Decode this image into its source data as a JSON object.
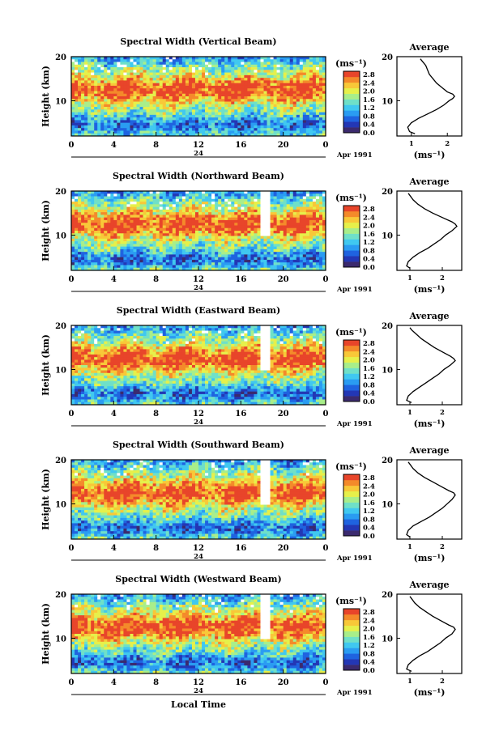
{
  "chart_data": [
    {
      "type": "heatmap",
      "title": "Spectral Width (Vertical Beam)",
      "ylabel": "Height (km)",
      "x_ticks": [
        "0",
        "4",
        "8",
        "12",
        "16",
        "20",
        "0"
      ],
      "y_ticks": [
        "20",
        "10"
      ],
      "date_label": "24",
      "month_label": "Apr 1991",
      "colorbar": {
        "unit": "(ms⁻¹)",
        "ticks": [
          "2.8",
          "2.4",
          "2.0",
          "1.6",
          "1.2",
          "0.8",
          "0.4",
          "0.0"
        ]
      },
      "average_profile": {
        "title": "Average",
        "xlabel": "(ms⁻¹)",
        "x_ticks": [
          "1",
          "2"
        ],
        "y_ticks": [
          "20",
          "10"
        ],
        "xlim": [
          0.6,
          2.4
        ],
        "ylim": [
          2,
          20
        ],
        "height_km": [
          2.5,
          3,
          4,
          5,
          6,
          7,
          8,
          9,
          10,
          10.5,
          11,
          11.5,
          12,
          13,
          14,
          15,
          16,
          17,
          18,
          19,
          19.5
        ],
        "width_ms": [
          1.1,
          0.95,
          0.9,
          1.0,
          1.2,
          1.45,
          1.7,
          1.9,
          2.05,
          2.15,
          2.2,
          2.15,
          2.0,
          1.85,
          1.7,
          1.6,
          1.5,
          1.45,
          1.4,
          1.3,
          1.25
        ]
      }
    },
    {
      "type": "heatmap",
      "title": "Spectral Width (Northward Beam)",
      "ylabel": "Height (km)",
      "x_ticks": [
        "0",
        "4",
        "8",
        "12",
        "16",
        "20",
        "0"
      ],
      "y_ticks": [
        "20",
        "10"
      ],
      "date_label": "24",
      "month_label": "Apr 1991",
      "colorbar": {
        "unit": "(ms⁻¹)",
        "ticks": [
          "2.8",
          "2.4",
          "2.0",
          "1.6",
          "1.2",
          "0.8",
          "0.4",
          "0.0"
        ]
      },
      "average_profile": {
        "title": "Average",
        "xlabel": "(ms⁻¹)",
        "x_ticks": [
          "1",
          "2"
        ],
        "y_ticks": [
          "20",
          "10"
        ],
        "xlim": [
          0.6,
          2.6
        ],
        "ylim": [
          2,
          20
        ],
        "height_km": [
          2.5,
          3,
          4,
          5,
          6,
          7,
          8,
          9,
          10,
          11,
          12,
          12.5,
          13,
          14,
          15,
          16,
          17,
          18,
          19,
          19.5
        ],
        "width_ms": [
          1.0,
          0.9,
          0.95,
          1.1,
          1.3,
          1.55,
          1.75,
          1.95,
          2.1,
          2.3,
          2.45,
          2.4,
          2.3,
          2.0,
          1.7,
          1.45,
          1.25,
          1.1,
          1.0,
          0.95
        ]
      }
    },
    {
      "type": "heatmap",
      "title": "Spectral Width (Eastward Beam)",
      "ylabel": "Height (km)",
      "x_ticks": [
        "0",
        "4",
        "8",
        "12",
        "16",
        "20",
        "0"
      ],
      "y_ticks": [
        "20",
        "10"
      ],
      "date_label": "24",
      "month_label": "Apr 1991",
      "colorbar": {
        "unit": "(ms⁻¹)",
        "ticks": [
          "2.8",
          "2.4",
          "2.0",
          "1.6",
          "1.2",
          "0.8",
          "0.4",
          "0.0"
        ]
      },
      "average_profile": {
        "title": "Average",
        "xlabel": "(ms⁻¹)",
        "x_ticks": [
          "1",
          "2"
        ],
        "y_ticks": [
          "20",
          "10"
        ],
        "xlim": [
          0.6,
          2.6
        ],
        "ylim": [
          2,
          20
        ],
        "height_km": [
          2.5,
          3,
          4,
          5,
          6,
          7,
          8,
          9,
          10,
          11,
          12,
          12.5,
          13,
          14,
          15,
          16,
          17,
          18,
          19,
          19.5
        ],
        "width_ms": [
          1.05,
          0.9,
          0.95,
          1.1,
          1.3,
          1.5,
          1.7,
          1.9,
          2.05,
          2.25,
          2.4,
          2.35,
          2.25,
          2.0,
          1.75,
          1.55,
          1.35,
          1.2,
          1.05,
          1.0
        ]
      }
    },
    {
      "type": "heatmap",
      "title": "Spectral Width (Southward Beam)",
      "ylabel": "Height (km)",
      "x_ticks": [
        "0",
        "4",
        "8",
        "12",
        "16",
        "20",
        "0"
      ],
      "y_ticks": [
        "20",
        "10"
      ],
      "date_label": "24",
      "month_label": "Apr 1991",
      "colorbar": {
        "unit": "(ms⁻¹)",
        "ticks": [
          "2.8",
          "2.4",
          "2.0",
          "1.6",
          "1.2",
          "0.8",
          "0.4",
          "0.0"
        ]
      },
      "average_profile": {
        "title": "Average",
        "xlabel": "(ms⁻¹)",
        "x_ticks": [
          "1",
          "2"
        ],
        "y_ticks": [
          "20",
          "10"
        ],
        "xlim": [
          0.6,
          2.6
        ],
        "ylim": [
          2,
          20
        ],
        "height_km": [
          2.5,
          3,
          4,
          5,
          6,
          7,
          8,
          9,
          10,
          11,
          12,
          12.5,
          13,
          14,
          15,
          16,
          17,
          18,
          19,
          19.5
        ],
        "width_ms": [
          1.0,
          0.9,
          0.95,
          1.1,
          1.35,
          1.6,
          1.8,
          2.0,
          2.15,
          2.3,
          2.4,
          2.35,
          2.2,
          1.95,
          1.7,
          1.45,
          1.25,
          1.1,
          1.0,
          0.95
        ]
      }
    },
    {
      "type": "heatmap",
      "title": "Spectral Width (Westward Beam)",
      "ylabel": "Height (km)",
      "x_ticks": [
        "0",
        "4",
        "8",
        "12",
        "16",
        "20",
        "0"
      ],
      "y_ticks": [
        "20",
        "10"
      ],
      "date_label": "24",
      "month_label": "Apr 1991",
      "xlabel": "Local Time",
      "colorbar": {
        "unit": "(ms⁻¹)",
        "ticks": [
          "2.8",
          "2.4",
          "2.0",
          "1.6",
          "1.2",
          "0.8",
          "0.4",
          "0.0"
        ]
      },
      "average_profile": {
        "title": "Average",
        "xlabel": "(ms⁻¹)",
        "x_ticks": [
          "1",
          "2"
        ],
        "y_ticks": [
          "20",
          "10"
        ],
        "xlim": [
          0.6,
          2.6
        ],
        "ylim": [
          2,
          20
        ],
        "height_km": [
          2.5,
          3,
          4,
          5,
          6,
          7,
          8,
          9,
          10,
          11,
          12,
          12.5,
          13,
          14,
          15,
          16,
          17,
          18,
          19,
          19.5
        ],
        "width_ms": [
          1.05,
          0.9,
          0.95,
          1.1,
          1.3,
          1.55,
          1.75,
          1.95,
          2.1,
          2.3,
          2.4,
          2.35,
          2.2,
          1.95,
          1.7,
          1.5,
          1.3,
          1.15,
          1.05,
          1.0
        ]
      }
    }
  ],
  "colors": {
    "colormap": [
      "#3b2a6e",
      "#2337b5",
      "#1f63e0",
      "#2a9cf2",
      "#40c8f0",
      "#6fe0c8",
      "#a8ee8a",
      "#e6f04a",
      "#f8c838",
      "#f48a2a",
      "#e8452a"
    ],
    "gap": "#ffffff",
    "axis": "#000000"
  }
}
